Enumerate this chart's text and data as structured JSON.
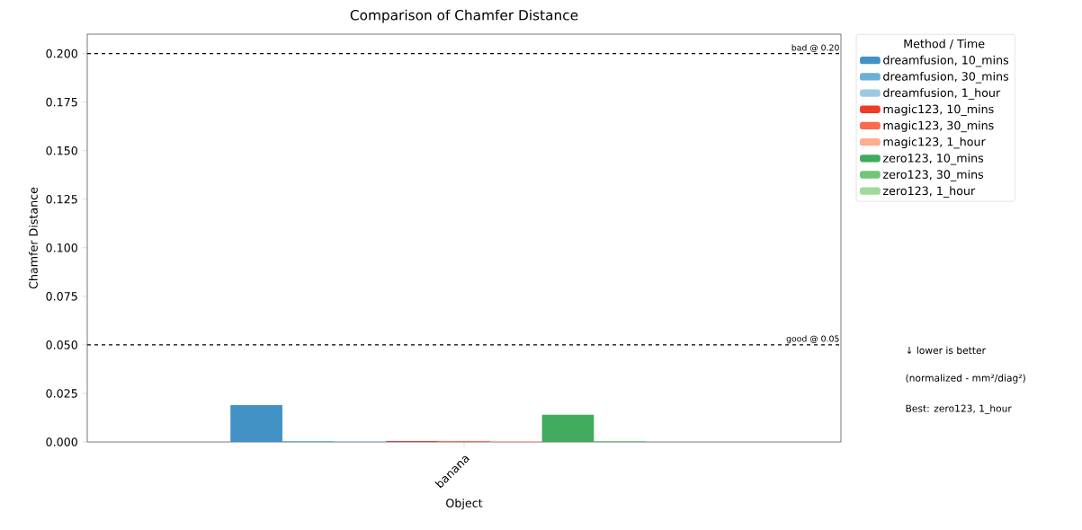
{
  "chart_data": {
    "type": "bar",
    "title": "Comparison of Chamfer Distance",
    "xlabel": "Object",
    "ylabel": "Chamfer Distance",
    "legend_title": "Method / Time",
    "categories": [
      "banana"
    ],
    "series": [
      {
        "name": "dreamfusion, 10_mins",
        "color": "#4292c6",
        "values": [
          0.019
        ]
      },
      {
        "name": "dreamfusion, 30_mins",
        "color": "#6baed6",
        "values": [
          0.0005
        ]
      },
      {
        "name": "dreamfusion, 1_hour",
        "color": "#9ecae1",
        "values": [
          0.0005
        ]
      },
      {
        "name": "magic123, 10_mins",
        "color": "#ef3b2c",
        "values": [
          0.0005
        ]
      },
      {
        "name": "magic123, 30_mins",
        "color": "#fb6a4a",
        "values": [
          0.0005
        ]
      },
      {
        "name": "magic123, 1_hour",
        "color": "#fcae91",
        "values": [
          0.0005
        ]
      },
      {
        "name": "zero123, 10_mins",
        "color": "#41ab5d",
        "values": [
          0.014
        ]
      },
      {
        "name": "zero123, 30_mins",
        "color": "#74c476",
        "values": [
          0.0005
        ]
      },
      {
        "name": "zero123, 1_hour",
        "color": "#a1d99b",
        "values": [
          null
        ]
      }
    ],
    "ylim": [
      0,
      0.21
    ],
    "yticks": [
      {
        "value": 0,
        "label": "0.000"
      },
      {
        "value": 0.025,
        "label": "0.025"
      },
      {
        "value": 0.05,
        "label": "0.050"
      },
      {
        "value": 0.075,
        "label": "0.075"
      },
      {
        "value": 0.1,
        "label": "0.100"
      },
      {
        "value": 0.125,
        "label": "0.125"
      },
      {
        "value": 0.15,
        "label": "0.150"
      },
      {
        "value": 0.175,
        "label": "0.175"
      },
      {
        "value": 0.2,
        "label": "0.200"
      }
    ],
    "ref_lines": [
      {
        "axis": "y",
        "value": 0.2,
        "label": "bad @ 0.20",
        "color": "#000000",
        "line_style": "dashed"
      },
      {
        "axis": "y",
        "value": 0.05,
        "label": "good @ 0.05",
        "color": "#000000",
        "line_style": "dashed"
      }
    ],
    "annotations": [
      "↓ lower is better",
      "(normalized - mm²/diag²)",
      "Best: zero123, 1_hour"
    ],
    "legend": "top right",
    "grid": false
  }
}
